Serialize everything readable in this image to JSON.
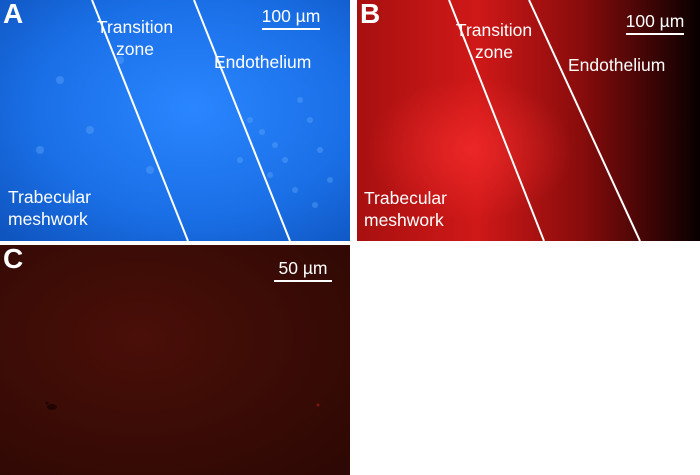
{
  "panels": {
    "a": {
      "label": "A",
      "regions": {
        "transition": "Transition zone",
        "endothelium": "Endothelium",
        "trabecular": "Trabecular meshwork"
      },
      "scale_bar": "100 µm"
    },
    "b": {
      "label": "B",
      "regions": {
        "transition": "Transition zone",
        "endothelium": "Endothelium",
        "trabecular": "Trabecular meshwork"
      },
      "scale_bar": "100 µm"
    },
    "c": {
      "label": "C",
      "scale_bar": "50 µm"
    }
  },
  "colors": {
    "panel_a_fluorescence": "#1a6fe6",
    "panel_b_fluorescence": "#c41414",
    "panel_c_background": "#3a0a05"
  }
}
